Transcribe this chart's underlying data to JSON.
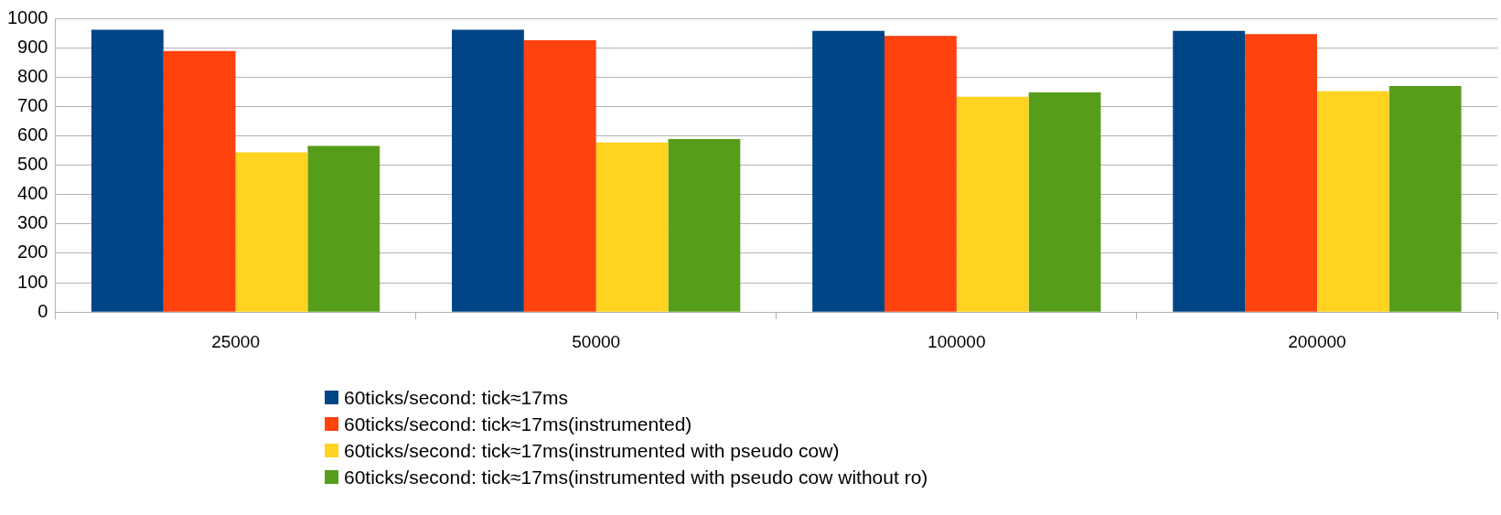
{
  "chart_data": {
    "type": "bar",
    "categories": [
      "25000",
      "50000",
      "100000",
      "200000"
    ],
    "series": [
      {
        "name": "60ticks/second: tick≈17ms",
        "color": "#004586",
        "values": [
          961,
          961,
          957,
          957
        ]
      },
      {
        "name": "60ticks/second: tick≈17ms(instrumented)",
        "color": "#ff420e",
        "values": [
          889,
          925,
          940,
          946
        ]
      },
      {
        "name": "60ticks/second: tick≈17ms(instrumented with pseudo cow)",
        "color": "#ffd320",
        "values": [
          544,
          577,
          733,
          752
        ]
      },
      {
        "name": "60ticks/second: tick≈17ms(instrumented with pseudo cow without ro)",
        "color": "#579d1c",
        "values": [
          566,
          589,
          748,
          770
        ]
      }
    ],
    "ylim": [
      0,
      1000
    ],
    "yticks": [
      0,
      100,
      200,
      300,
      400,
      500,
      600,
      700,
      800,
      900,
      1000
    ],
    "grid": "y",
    "legend": "bottom"
  }
}
